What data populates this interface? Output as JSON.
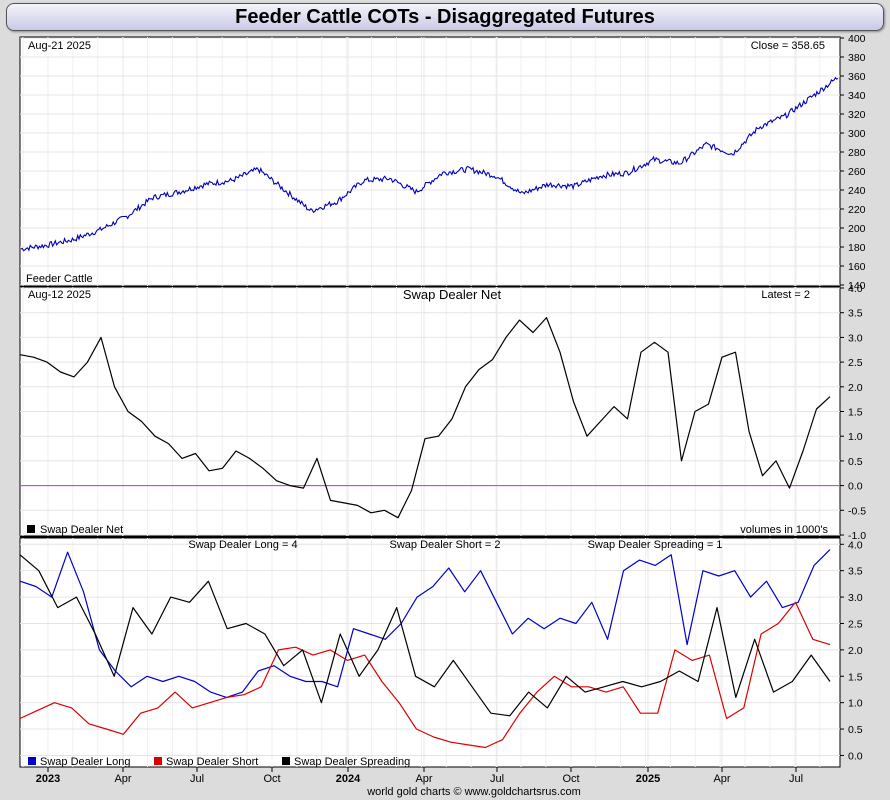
{
  "title": "Feeder Cattle COTs - Disaggregated Futures",
  "footer": "world gold charts © www.goldchartsrus.com",
  "chart_data": [
    {
      "type": "line",
      "name_label": "Feeder Cattle",
      "date_label": "Aug-21  2025",
      "close_label": "Close = 358.65",
      "ylim": [
        140,
        400
      ],
      "yticks": [
        "140",
        "160",
        "180",
        "200",
        "220",
        "240",
        "260",
        "280",
        "300",
        "320",
        "340",
        "360",
        "380",
        "400"
      ],
      "color": "#0000bb",
      "x": [
        "2023-01",
        "2023-02",
        "2023-03",
        "2023-04",
        "2023-05",
        "2023-06",
        "2023-07",
        "2023-08",
        "2023-09",
        "2023-10",
        "2023-11",
        "2023-12",
        "2024-01",
        "2024-02",
        "2024-03",
        "2024-04",
        "2024-05",
        "2024-06",
        "2024-07",
        "2024-08",
        "2024-09",
        "2024-10",
        "2024-11",
        "2024-12",
        "2025-01",
        "2025-02",
        "2025-03",
        "2025-04",
        "2025-05",
        "2025-06",
        "2025-07",
        "2025-08"
      ],
      "values": [
        178,
        182,
        188,
        198,
        212,
        232,
        238,
        246,
        250,
        262,
        240,
        218,
        228,
        250,
        252,
        238,
        258,
        262,
        255,
        236,
        246,
        244,
        255,
        258,
        272,
        268,
        288,
        278,
        306,
        318,
        338,
        358.65
      ]
    },
    {
      "type": "line",
      "title": "Swap Dealer Net",
      "date_label": "Aug-12  2025",
      "latest_label": "Latest = 2",
      "legend": "Swap Dealer Net",
      "units_label": "volumes in 1000's",
      "ylim": [
        -1.0,
        4.0
      ],
      "yticks": [
        "-1.0",
        "-0.5",
        "0.0",
        "0.5",
        "1.0",
        "1.5",
        "2.0",
        "2.5",
        "3.0",
        "3.5",
        "4.0"
      ],
      "zero_line_color": "#cc33cc",
      "color": "#000000",
      "values": [
        2.65,
        2.6,
        2.5,
        2.3,
        2.2,
        2.5,
        3.0,
        2.0,
        1.5,
        1.3,
        1.0,
        0.85,
        0.55,
        0.65,
        0.3,
        0.35,
        0.7,
        0.55,
        0.35,
        0.1,
        0.0,
        -0.05,
        0.55,
        -0.3,
        -0.35,
        -0.4,
        -0.55,
        -0.5,
        -0.65,
        -0.1,
        0.95,
        1.0,
        1.35,
        2.0,
        2.35,
        2.55,
        3.0,
        3.35,
        3.1,
        3.4,
        2.7,
        1.7,
        1.0,
        1.3,
        1.6,
        1.35,
        2.7,
        2.9,
        2.7,
        0.5,
        1.5,
        1.65,
        2.6,
        2.7,
        1.1,
        0.2,
        0.5,
        -0.05,
        0.7,
        1.55,
        1.8
      ]
    },
    {
      "type": "line",
      "labels": {
        "long": "Swap Dealer Long = 4",
        "short": "Swap Dealer Short = 2",
        "spreading": "Swap Dealer Spreading = 1"
      },
      "ylim": [
        -0.2,
        4.1
      ],
      "yticks": [
        "0.0",
        "0.5",
        "1.0",
        "1.5",
        "2.0",
        "2.5",
        "3.0",
        "3.5",
        "4.0"
      ],
      "series": [
        {
          "name": "Swap Dealer Long",
          "color": "#0000cc",
          "values": [
            3.3,
            3.2,
            3.0,
            3.85,
            3.1,
            2.0,
            1.6,
            1.3,
            1.5,
            1.4,
            1.5,
            1.4,
            1.2,
            1.1,
            1.2,
            1.6,
            1.7,
            1.5,
            1.4,
            1.4,
            1.3,
            2.4,
            2.3,
            2.2,
            2.5,
            3.0,
            3.2,
            3.55,
            3.1,
            3.5,
            2.9,
            2.3,
            2.6,
            2.4,
            2.6,
            2.5,
            2.9,
            2.2,
            3.5,
            3.7,
            3.6,
            3.8,
            2.1,
            3.5,
            3.4,
            3.5,
            3.0,
            3.3,
            2.8,
            2.9,
            3.6,
            3.9
          ]
        },
        {
          "name": "Swap Dealer Short",
          "color": "#dd0000",
          "values": [
            0.7,
            0.85,
            1.0,
            0.9,
            0.6,
            0.5,
            0.4,
            0.8,
            0.9,
            1.2,
            0.9,
            1.0,
            1.1,
            1.15,
            1.3,
            2.0,
            2.05,
            1.9,
            2.0,
            1.8,
            1.9,
            1.4,
            1.0,
            0.5,
            0.35,
            0.25,
            0.2,
            0.15,
            0.3,
            0.8,
            1.2,
            1.5,
            1.3,
            1.3,
            1.2,
            1.3,
            0.8,
            0.8,
            2.0,
            1.8,
            1.9,
            0.7,
            0.9,
            2.3,
            2.5,
            2.9,
            2.2,
            2.1
          ]
        },
        {
          "name": "Swap Dealer Spreading",
          "color": "#000000",
          "values": [
            3.8,
            3.5,
            2.8,
            3.0,
            2.3,
            1.5,
            2.8,
            2.3,
            3.0,
            2.9,
            3.3,
            2.4,
            2.5,
            2.3,
            1.7,
            2.0,
            1.0,
            2.3,
            1.5,
            2.0,
            2.8,
            1.5,
            1.3,
            1.8,
            1.3,
            0.8,
            0.75,
            1.2,
            0.9,
            1.5,
            1.2,
            1.3,
            1.4,
            1.3,
            1.4,
            1.6,
            1.4,
            2.8,
            1.1,
            2.2,
            1.2,
            1.4,
            1.9,
            1.4
          ]
        }
      ],
      "legend": [
        "Swap Dealer Long",
        "Swap Dealer Short",
        "Swap Dealer Spreading"
      ]
    }
  ],
  "x_axis": {
    "labels": [
      "2023",
      "Apr",
      "Jul",
      "Oct",
      "2024",
      "Apr",
      "Jul",
      "Oct",
      "2025",
      "Apr",
      "Jul"
    ],
    "bold": [
      true,
      false,
      false,
      false,
      true,
      false,
      false,
      false,
      true,
      false,
      false
    ]
  }
}
